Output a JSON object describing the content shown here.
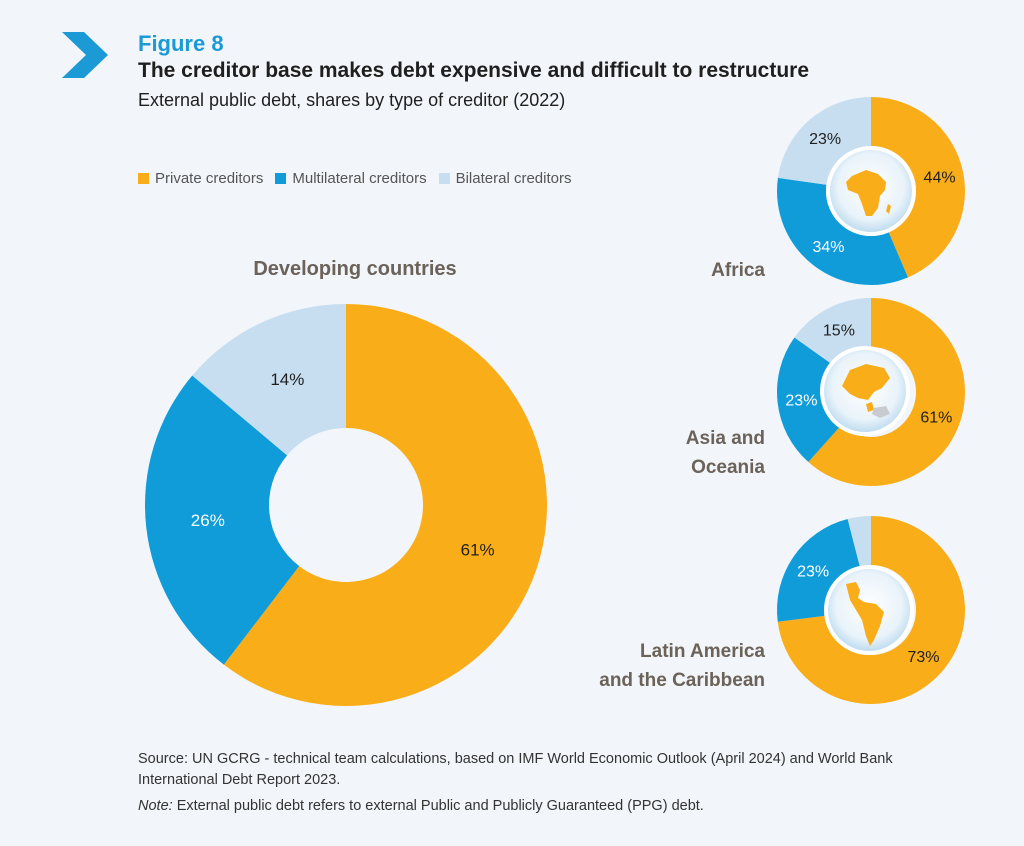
{
  "figure": {
    "label": "Figure 8",
    "title": "The creditor base makes debt expensive and difficult to restructure",
    "subtitle": "External public debt, shares by type of creditor (2022)"
  },
  "legend": {
    "items": [
      {
        "label": "Private creditors",
        "color": "#f9ad19"
      },
      {
        "label": "Multilateral creditors",
        "color": "#109cd8"
      },
      {
        "label": "Bilateral creditors",
        "color": "#c6def0"
      }
    ]
  },
  "chart_data": [
    {
      "type": "pie",
      "title": "Developing countries",
      "categories": [
        "Private creditors",
        "Multilateral creditors",
        "Bilateral creditors"
      ],
      "values": [
        61,
        26,
        14
      ],
      "labels": [
        "61%",
        "26%",
        "14%"
      ]
    },
    {
      "type": "pie",
      "title": "Africa",
      "categories": [
        "Private creditors",
        "Multilateral creditors",
        "Bilateral creditors"
      ],
      "values": [
        44,
        34,
        23
      ],
      "labels": [
        "44%",
        "34%",
        "23%"
      ]
    },
    {
      "type": "pie",
      "title": "Asia and Oceania",
      "categories": [
        "Private creditors",
        "Multilateral creditors",
        "Bilateral creditors"
      ],
      "values": [
        61,
        23,
        15
      ],
      "labels": [
        "61%",
        "23%",
        "15%"
      ]
    },
    {
      "type": "pie",
      "title": "Latin America and the Caribbean",
      "categories": [
        "Private creditors",
        "Multilateral creditors",
        "Bilateral creditors"
      ],
      "values": [
        73,
        23,
        4
      ],
      "labels": [
        "73%",
        "23%",
        ""
      ]
    }
  ],
  "regions": {
    "africa": "Africa",
    "asia_line1": "Asia and",
    "asia_line2": "Oceania",
    "latam_line1": "Latin America",
    "latam_line2": "and the Caribbean"
  },
  "source": {
    "text": "Source: UN GCRG - technical team calculations, based on IMF World Economic Outlook (April 2024) and World Bank International Debt Report 2023.",
    "note_label": "Note:",
    "note_text": " External public debt refers to external Public and Publicly Guaranteed (PPG) debt."
  }
}
